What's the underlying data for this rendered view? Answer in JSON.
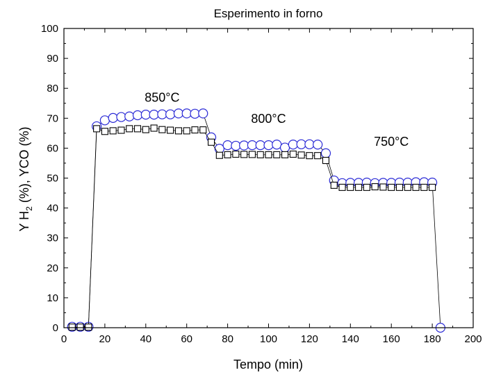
{
  "chart_data": {
    "type": "scatter",
    "title": "Esperimento in forno",
    "xlabel": "Tempo (min)",
    "ylabel": {
      "prefix": "Y H",
      "subscript": "2",
      "suffix": " (%), YCO (%)"
    },
    "xlim": [
      0,
      200
    ],
    "ylim": [
      0,
      100
    ],
    "xticks": [
      0,
      20,
      40,
      60,
      80,
      100,
      120,
      140,
      160,
      180,
      200
    ],
    "yticks": [
      0,
      10,
      20,
      30,
      40,
      50,
      60,
      70,
      80,
      90,
      100
    ],
    "grid": false,
    "annotations": [
      {
        "text": "850°C",
        "x": 48,
        "y": 75.5
      },
      {
        "text": "800°C",
        "x": 100,
        "y": 68.5
      },
      {
        "text": "750°C",
        "x": 160,
        "y": 60.8
      }
    ],
    "series": [
      {
        "marker": "circle",
        "color": "#2b2bd6",
        "x": [
          4,
          8,
          12,
          16,
          20,
          24,
          28,
          32,
          36,
          40,
          44,
          48,
          52,
          56,
          60,
          64,
          68,
          72,
          76,
          80,
          84,
          88,
          92,
          96,
          100,
          104,
          108,
          112,
          116,
          120,
          124,
          128,
          132,
          136,
          140,
          144,
          148,
          152,
          156,
          160,
          164,
          168,
          172,
          176,
          180,
          184
        ],
        "y": [
          0.3,
          0.3,
          0.3,
          67.3,
          69.3,
          70.1,
          70.4,
          70.6,
          71.0,
          71.2,
          71.2,
          71.3,
          71.3,
          71.6,
          71.6,
          71.5,
          71.6,
          63.6,
          59.8,
          61.0,
          60.8,
          60.9,
          61.0,
          61.0,
          61.0,
          61.2,
          60.2,
          61.2,
          61.3,
          61.3,
          61.2,
          58.3,
          49.2,
          48.3,
          48.4,
          48.4,
          48.5,
          48.3,
          48.4,
          48.4,
          48.5,
          48.5,
          48.6,
          48.6,
          48.5,
          0.0
        ]
      },
      {
        "marker": "square",
        "color": "#000000",
        "x": [
          4,
          8,
          12,
          16,
          20,
          24,
          28,
          32,
          36,
          40,
          44,
          48,
          52,
          56,
          60,
          64,
          68,
          72,
          76,
          80,
          84,
          88,
          92,
          96,
          100,
          104,
          108,
          112,
          116,
          120,
          124,
          128,
          132,
          136,
          140,
          144,
          148,
          152,
          156,
          160,
          164,
          168,
          172,
          176,
          180
        ],
        "y": [
          0.2,
          0.2,
          0.2,
          66.5,
          65.6,
          65.8,
          66.0,
          66.5,
          66.5,
          66.2,
          66.7,
          66.2,
          66.0,
          65.8,
          65.8,
          66.1,
          66.1,
          62.0,
          57.6,
          57.8,
          58.0,
          57.9,
          57.9,
          57.8,
          57.8,
          57.8,
          57.8,
          58.0,
          57.7,
          57.5,
          57.5,
          55.9,
          47.6,
          46.9,
          46.9,
          46.9,
          46.9,
          47.1,
          47.0,
          46.9,
          46.9,
          46.9,
          46.9,
          46.9,
          46.9
        ]
      }
    ]
  }
}
